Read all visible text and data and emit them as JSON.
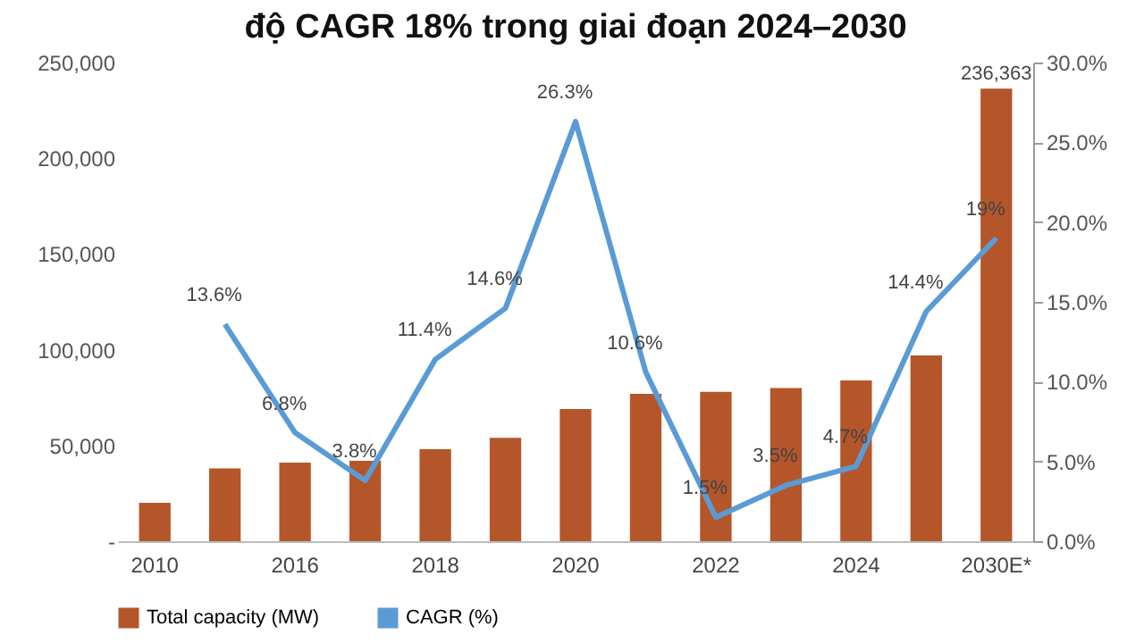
{
  "chart_data": {
    "type": "bar",
    "title": "độ CAGR 18% trong giai đoạn 2024–2030",
    "categories": [
      "2010",
      null,
      "2016",
      null,
      "2018",
      null,
      "2020",
      null,
      "2022",
      null,
      "2024",
      null,
      "2030E*"
    ],
    "series": [
      {
        "name": "Total capacity (MW)",
        "color": "#b5562a",
        "values": [
          20000,
          38000,
          41000,
          42000,
          48000,
          54000,
          69000,
          77000,
          78000,
          80000,
          84000,
          97000,
          236363
        ],
        "value_labels": [
          null,
          null,
          null,
          null,
          null,
          null,
          null,
          null,
          null,
          null,
          null,
          null,
          "236,363"
        ]
      },
      {
        "name": "CAGR (%)",
        "type": "line",
        "axis": "y2",
        "color": "#5b9bd5",
        "values": [
          null,
          13.6,
          6.8,
          3.8,
          11.4,
          14.6,
          26.3,
          10.6,
          1.5,
          3.5,
          4.7,
          14.4,
          19
        ],
        "value_labels": [
          null,
          "13.6%",
          "6.8%",
          "3.8%",
          "11.4%",
          "14.6%",
          "26.3%",
          "10.6%",
          "1.5%",
          "3.5%",
          "4.7%",
          "14.4%",
          "19%"
        ]
      }
    ],
    "ylim": [
      0,
      250000
    ],
    "yticks": [
      {
        "value": 0,
        "label": "-"
      },
      {
        "value": 50000,
        "label": "50,000"
      },
      {
        "value": 100000,
        "label": "100,000"
      },
      {
        "value": 150000,
        "label": "150,000"
      },
      {
        "value": 200000,
        "label": "200,000"
      },
      {
        "value": 250000,
        "label": "250,000"
      }
    ],
    "y2lim": [
      0,
      30
    ],
    "y2ticks": [
      {
        "value": 0,
        "label": "0.0%"
      },
      {
        "value": 5,
        "label": "5.0%"
      },
      {
        "value": 10,
        "label": "10.0%"
      },
      {
        "value": 15,
        "label": "15.0%"
      },
      {
        "value": 20,
        "label": "20.0%"
      },
      {
        "value": 25,
        "label": "25.0%"
      },
      {
        "value": 30,
        "label": "30.0%"
      }
    ],
    "grid": false,
    "legend": "bottom",
    "marker": "none",
    "line_style": "solid"
  }
}
